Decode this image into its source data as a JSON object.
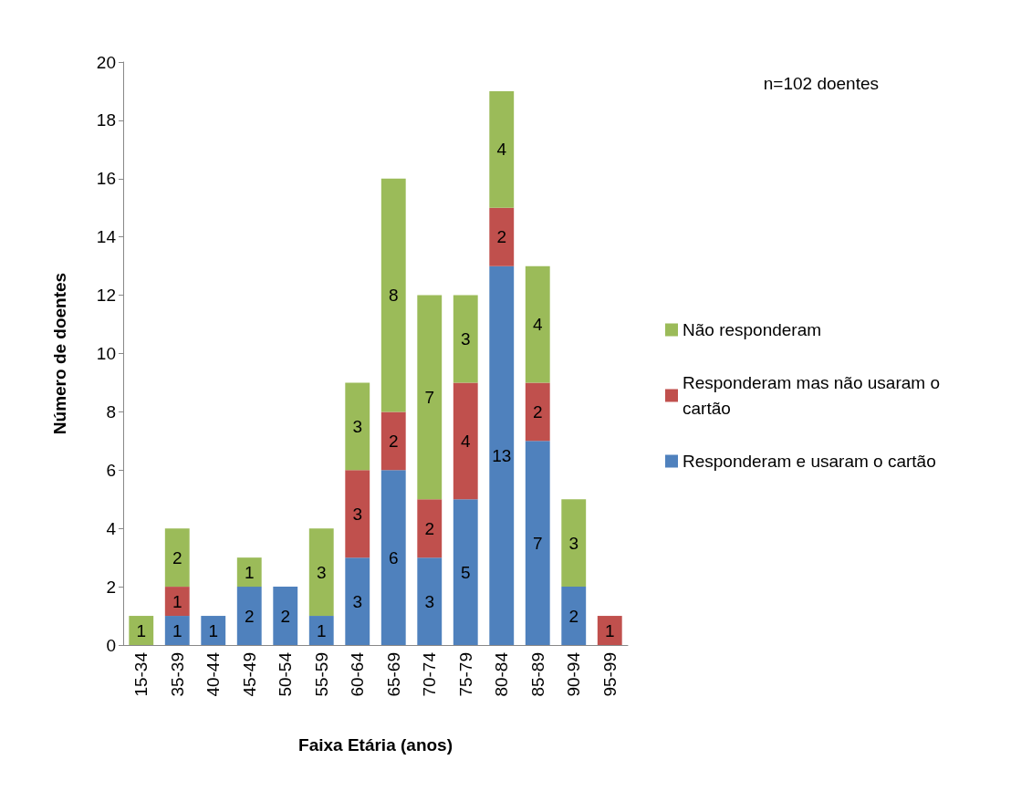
{
  "chart_data": {
    "type": "bar",
    "stacked": true,
    "xlabel": "Faixa Etária (anos)",
    "ylabel": "Número de doentes",
    "categories": [
      "15-34",
      "35-39",
      "40-44",
      "45-49",
      "50-54",
      "55-59",
      "60-64",
      "65-69",
      "70-74",
      "75-79",
      "80-84",
      "85-89",
      "90-94",
      "95-99"
    ],
    "series": [
      {
        "name": "Responderam e usaram o cartão",
        "color": "#4f81bd",
        "values": [
          null,
          1,
          1,
          2,
          2,
          1,
          3,
          6,
          3,
          5,
          13,
          7,
          2,
          null
        ]
      },
      {
        "name": "Responderam mas não usaram o cartão",
        "color": "#c0504d",
        "values": [
          null,
          1,
          null,
          null,
          null,
          null,
          3,
          2,
          2,
          4,
          2,
          2,
          null,
          1
        ]
      },
      {
        "name": "Não responderam",
        "color": "#9bbb59",
        "values": [
          1,
          2,
          null,
          1,
          null,
          3,
          3,
          8,
          7,
          3,
          4,
          4,
          3,
          null
        ]
      }
    ],
    "ylim": [
      0,
      20
    ],
    "yticks": [
      0,
      2,
      4,
      6,
      8,
      10,
      12,
      14,
      16,
      18,
      20
    ],
    "grid": false,
    "legend": "right",
    "data_labels": true,
    "annotations": [
      "n=102 doentes"
    ]
  }
}
